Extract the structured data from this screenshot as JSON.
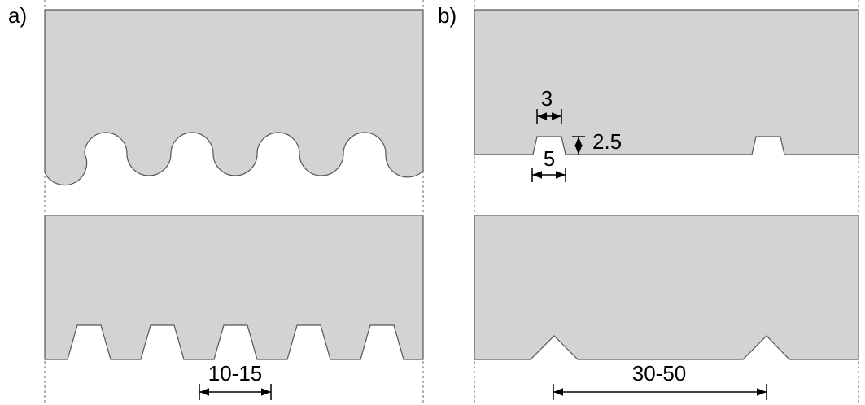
{
  "panels": [
    {
      "label": "a)",
      "dimensions": [
        "10-15"
      ]
    },
    {
      "label": "b)",
      "dimensions": [
        "3",
        "2.5",
        "5",
        "30-50"
      ]
    }
  ]
}
